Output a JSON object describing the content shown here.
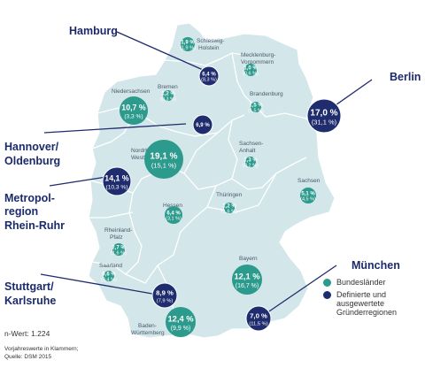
{
  "colors": {
    "map_fill": "#d3e6ea",
    "map_border": "#ffffff",
    "state_bubble": "#2c9a8c",
    "region_bubble": "#1f2c6d",
    "connector": "#1f2c6d",
    "title_text": "#1b2a6b"
  },
  "states": [
    {
      "name": "Schleswig-\nHolstein",
      "value": "1,9 %",
      "prev": "(1,9 %)"
    },
    {
      "name": "Mecklenburg-\nVorpommern",
      "value": "1,0 %",
      "prev": "(0,6 %)"
    },
    {
      "name": "Bremen",
      "value": "1,2 %",
      "prev": "(0,3 %)"
    },
    {
      "name": "Niedersachsen",
      "value": "10,7 %",
      "prev": "(3,3 %)"
    },
    {
      "name": "Brandenburg",
      "value": "1,5 %",
      "prev": "(1,5 %)"
    },
    {
      "name": "Nordrhein-\nWestfalen",
      "value": "19,1 %",
      "prev": "(15,1 %)"
    },
    {
      "name": "Sachsen-\nAnhalt",
      "value": "1,3 %",
      "prev": "(0,2 %)"
    },
    {
      "name": "Sachsen",
      "value": "5,1 %",
      "prev": "(4,5 %)"
    },
    {
      "name": "Thüringen",
      "value": "1,2 %",
      "prev": "(1,6 %)"
    },
    {
      "name": "Hessen",
      "value": "6,4 %",
      "prev": "(3,1 %)"
    },
    {
      "name": "Rheinland-\nPfalz",
      "value": "2,7 %",
      "prev": "(1,6 %)"
    },
    {
      "name": "Saarland",
      "value": "0,6 %",
      "prev": "(0,4 %)"
    },
    {
      "name": "Bayern",
      "value": "12,1 %",
      "prev": "(16,7 %)"
    },
    {
      "name": "Baden-\nWürttemberg",
      "value": "12,4 %",
      "prev": "(9,9 %)"
    }
  ],
  "regions": [
    {
      "title": "Hamburg",
      "value": "6,4 %",
      "prev": "(8,3 %)"
    },
    {
      "title": "Berlin",
      "value": "17,0 %",
      "prev": "(31,1 %)"
    },
    {
      "title": "Hannover/\nOldenburg",
      "value": "6,9 %",
      "prev": ""
    },
    {
      "title": "Metropol-\nregion\nRhein-Ruhr",
      "value": "14,1 %",
      "prev": "(10,3 %)"
    },
    {
      "title": "Stuttgart/\nKarlsruhe",
      "value": "8,9 %",
      "prev": "(7,9 %)"
    },
    {
      "title": "München",
      "value": "7,0 %",
      "prev": "(11,5 %)"
    }
  ],
  "legend": {
    "states_label": "Bundesländer",
    "regions_label": "Definierte und ausgewertete Gründerregionen"
  },
  "footnote": {
    "n_value": "n-Wert: 1.224",
    "note": "Vorjahreswerte in Klammern;",
    "source": "Quelle: DSM 2015"
  }
}
